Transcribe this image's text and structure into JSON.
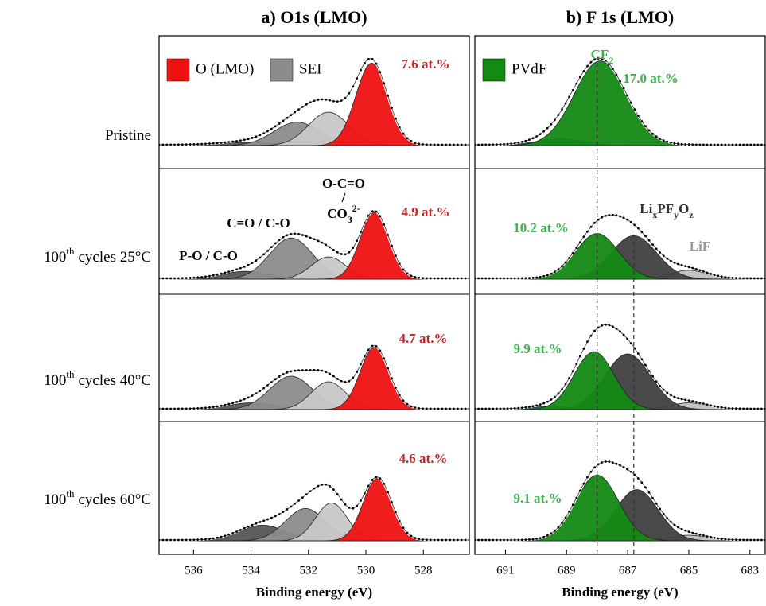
{
  "chart_data": [
    {
      "type": "xps-stack",
      "title": "a) O1s (LMO)",
      "xlabel": "Binding energy (eV)",
      "xlim": [
        537.2,
        526.4
      ],
      "xticks": [
        536,
        534,
        532,
        530,
        528
      ],
      "ylim": [
        0,
        1
      ],
      "legend": [
        {
          "name": "O (LMO)",
          "color": "#ee1111"
        },
        {
          "name": "SEI",
          "color": "#8c8c8c"
        }
      ],
      "rows": [
        {
          "label": {
            "main": "Pristine"
          },
          "components": [
            {
              "color": "#555555",
              "center": 534.0,
              "height": 0.03,
              "width": 1.0
            },
            {
              "color": "#8c8c8c",
              "center": 532.4,
              "height": 0.21,
              "width": 0.8
            },
            {
              "color": "#c8c8c8",
              "center": 531.3,
              "height": 0.3,
              "width": 0.7
            },
            {
              "color": "#ee1111",
              "center": 529.8,
              "height": 0.74,
              "width": 0.55
            }
          ],
          "annotations": [
            {
              "color": "#c0282a",
              "parts": [
                {
                  "text": "7.6 at.%"
                }
              ]
            }
          ]
        },
        {
          "label": {
            "main": "100",
            "sup": "th",
            "rest": "cycles  25°C"
          },
          "components": [
            {
              "color": "#555555",
              "center": 534.2,
              "height": 0.07,
              "width": 0.8
            },
            {
              "color": "#8c8c8c",
              "center": 532.6,
              "height": 0.37,
              "width": 0.75
            },
            {
              "color": "#c8c8c8",
              "center": 531.3,
              "height": 0.2,
              "width": 0.6
            },
            {
              "color": "#ee1111",
              "center": 529.7,
              "height": 0.6,
              "width": 0.5
            }
          ],
          "annotations": [
            {
              "color": "#c0282a",
              "parts": [
                {
                  "text": "4.9 at.%"
                }
              ]
            },
            {
              "color": "#000000",
              "parts": [
                {
                  "text": "P-O / C-O"
                }
              ]
            },
            {
              "color": "#000000",
              "parts": [
                {
                  "text": "C=O  / C-O"
                }
              ]
            },
            {
              "color": "#000000",
              "parts": [
                {
                  "text": "O-C=O"
                }
              ]
            },
            {
              "color": "#000000",
              "parts": [
                {
                  "text": "/"
                }
              ]
            },
            {
              "color": "#000000",
              "parts": [
                {
                  "text": "CO"
                },
                {
                  "text": "3",
                  "shift": "sub"
                },
                {
                  "text": "2-",
                  "shift": "super"
                }
              ]
            }
          ]
        },
        {
          "label": {
            "main": "100",
            "sup": "th",
            "rest": "cycles  40°C"
          },
          "components": [
            {
              "color": "#555555",
              "center": 534.0,
              "height": 0.06,
              "width": 0.8
            },
            {
              "color": "#8c8c8c",
              "center": 532.6,
              "height": 0.3,
              "width": 0.75
            },
            {
              "color": "#c8c8c8",
              "center": 531.3,
              "height": 0.25,
              "width": 0.6
            },
            {
              "color": "#ee1111",
              "center": 529.7,
              "height": 0.56,
              "width": 0.5
            }
          ],
          "annotations": [
            {
              "color": "#c0282a",
              "parts": [
                {
                  "text": "4.7 at.%"
                }
              ]
            }
          ]
        },
        {
          "label": {
            "main": "100",
            "sup": "th",
            "rest": "cycles  60°C"
          },
          "components": [
            {
              "color": "#555555",
              "center": 533.6,
              "height": 0.14,
              "width": 0.8
            },
            {
              "color": "#8c8c8c",
              "center": 532.1,
              "height": 0.29,
              "width": 0.7
            },
            {
              "color": "#c8c8c8",
              "center": 531.2,
              "height": 0.34,
              "width": 0.55
            },
            {
              "color": "#ee1111",
              "center": 529.6,
              "height": 0.56,
              "width": 0.5
            }
          ],
          "annotations": [
            {
              "color": "#c0282a",
              "parts": [
                {
                  "text": "4.6 at.%"
                }
              ]
            }
          ]
        }
      ]
    },
    {
      "type": "xps-stack",
      "title": "b) F 1s (LMO)",
      "xlabel": "Binding energy (eV)",
      "xlim": [
        692,
        682.5
      ],
      "xticks": [
        691,
        689,
        687,
        685,
        683
      ],
      "ylim": [
        0,
        1
      ],
      "legend": [
        {
          "name": "PVdF",
          "color": "#138a14"
        }
      ],
      "reference_lines": [
        688,
        686.8
      ],
      "rows": [
        {
          "components": [
            {
              "color": "#1b6e6e",
              "center": 689.2,
              "height": 0.06,
              "width": 0.8
            },
            {
              "color": "#138a14",
              "center": 687.9,
              "height": 0.76,
              "width": 0.85
            }
          ],
          "annotations": [
            {
              "color": "#3cb44b",
              "parts": [
                {
                  "text": "CF"
                },
                {
                  "text": "2",
                  "shift": "sub"
                }
              ]
            },
            {
              "color": "#3cb44b",
              "parts": [
                {
                  "text": "17.0 at.%"
                }
              ]
            }
          ]
        },
        {
          "components": [
            {
              "color": "#c0c0c0",
              "center": 685.0,
              "height": 0.08,
              "width": 0.6
            },
            {
              "color": "#404040",
              "center": 686.8,
              "height": 0.39,
              "width": 0.75
            },
            {
              "color": "#138a14",
              "center": 688.0,
              "height": 0.41,
              "width": 0.7
            }
          ],
          "annotations": [
            {
              "color": "#3cb44b",
              "parts": [
                {
                  "text": "10.2 at.%"
                }
              ]
            },
            {
              "color": "#333333",
              "parts": [
                {
                  "text": "Li"
                },
                {
                  "text": "x",
                  "shift": "sub"
                },
                {
                  "text": "PF"
                },
                {
                  "text": "y",
                  "shift": "sub"
                },
                {
                  "text": "O"
                },
                {
                  "text": "z",
                  "shift": "sub"
                }
              ]
            },
            {
              "color": "#999999",
              "parts": [
                {
                  "text": "LiF"
                }
              ]
            }
          ]
        },
        {
          "components": [
            {
              "color": "#1b6e6e",
              "center": 689.5,
              "height": 0.03,
              "width": 0.6
            },
            {
              "color": "#c0c0c0",
              "center": 685.0,
              "height": 0.06,
              "width": 0.6
            },
            {
              "color": "#404040",
              "center": 687.0,
              "height": 0.5,
              "width": 0.75
            },
            {
              "color": "#138a14",
              "center": 688.1,
              "height": 0.52,
              "width": 0.65
            }
          ],
          "annotations": [
            {
              "color": "#3cb44b",
              "parts": [
                {
                  "text": "9.9 at.%"
                }
              ]
            }
          ]
        },
        {
          "components": [
            {
              "color": "#c0c0c0",
              "center": 685.0,
              "height": 0.05,
              "width": 0.6
            },
            {
              "color": "#404040",
              "center": 686.7,
              "height": 0.46,
              "width": 0.7
            },
            {
              "color": "#138a14",
              "center": 688.0,
              "height": 0.59,
              "width": 0.7
            }
          ],
          "annotations": [
            {
              "color": "#3cb44b",
              "parts": [
                {
                  "text": "9.1 at.%"
                }
              ]
            }
          ]
        }
      ]
    }
  ]
}
